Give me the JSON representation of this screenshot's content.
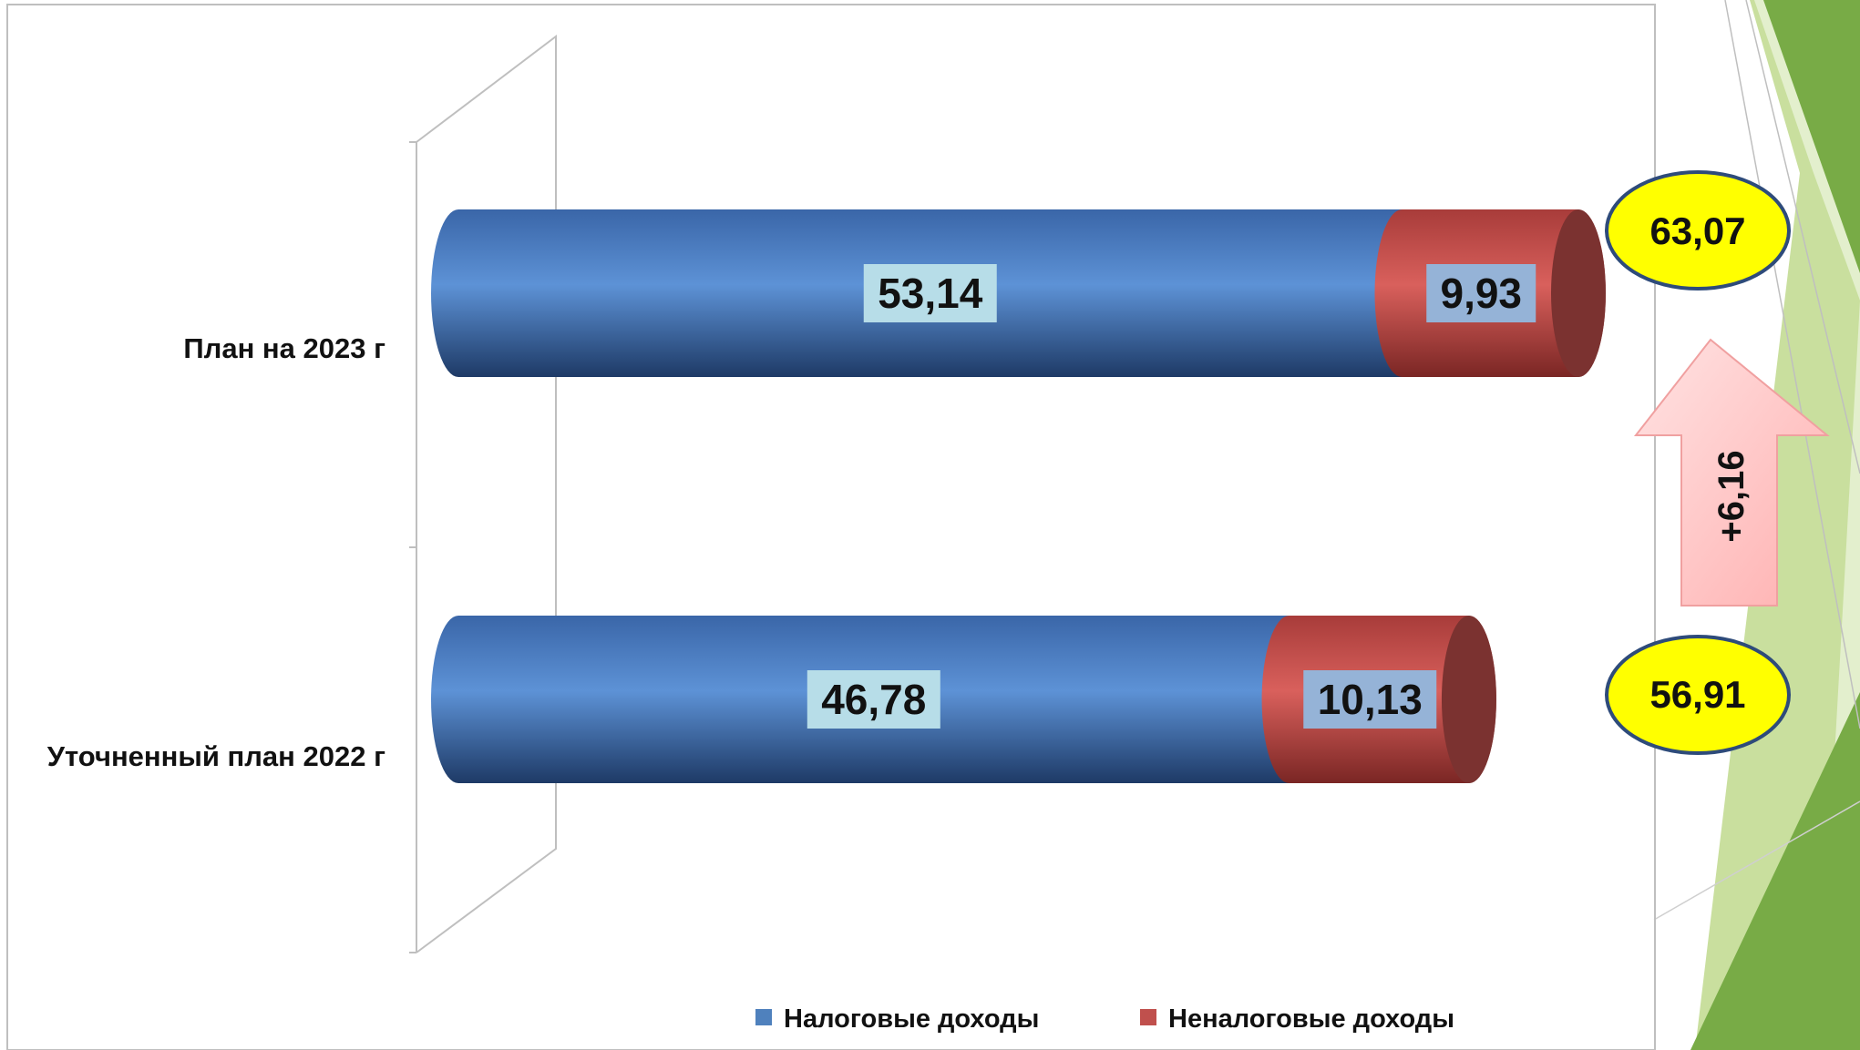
{
  "chart_data": {
    "type": "bar",
    "orientation": "horizontal",
    "stacked": true,
    "style": "3d-cylinder",
    "categories": [
      "План на 2023 г",
      "Уточненный план 2022 г"
    ],
    "series": [
      {
        "name": "Налоговые доходы",
        "values": [
          53.14,
          46.78
        ],
        "labels": [
          "53,14",
          "46,78"
        ],
        "color": "#4f81bd"
      },
      {
        "name": "Неналоговые доходы",
        "values": [
          9.93,
          10.13
        ],
        "labels": [
          "9,93",
          "10,13"
        ],
        "color": "#c0504d"
      }
    ],
    "xlim": [
      0,
      63.07
    ],
    "grid": false,
    "legend": "bottom",
    "totals": [
      "63,07",
      "56,91"
    ],
    "change_label": "+6,16"
  },
  "colors": {
    "accent_green": "#78ab46",
    "light_green": "#c9df9e",
    "total_bubble": "#ffff00",
    "bubble_border": "#2e4b7a",
    "arrow": "#ffb3b3"
  }
}
